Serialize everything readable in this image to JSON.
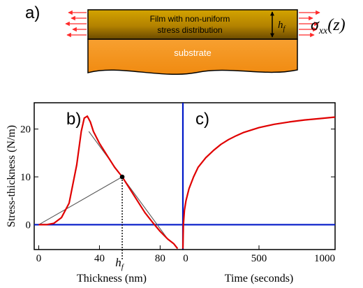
{
  "panel_a": {
    "label": "a)",
    "film_label_line1": "Film with non-uniform",
    "film_label_line2": "stress distribution",
    "substrate_label": "substrate",
    "thickness_label": "h",
    "thickness_subscript": "f",
    "stress_symbol": "σ",
    "stress_subscript": "xx",
    "stress_argument": "(z)",
    "colors": {
      "film_top": "#d4a400",
      "film_bottom": "#6b4a00",
      "substrate": "#f5931e",
      "arrows": "#ff2a2a"
    }
  },
  "chart_data": [
    {
      "panel_label": "b)",
      "type": "line",
      "xlabel": "Thickness (nm)",
      "ylabel": "Stress-thickness (N/m)",
      "xlim": [
        -3,
        95
      ],
      "ylim": [
        -5.2,
        25.5
      ],
      "x_ticks": [
        0,
        40,
        80
      ],
      "y_ticks": [
        0,
        10,
        20
      ],
      "series": [
        {
          "color": "#e00000",
          "x": [
            0,
            5,
            10,
            15,
            20,
            25,
            28,
            30,
            32,
            34,
            36,
            40,
            45,
            50,
            55,
            60,
            65,
            70,
            75,
            80,
            85,
            89,
            91.5
          ],
          "y": [
            0,
            0,
            0.3,
            1.5,
            4.5,
            12.5,
            19.5,
            22.3,
            22.7,
            21.5,
            19.5,
            17.0,
            14.5,
            12.0,
            10.0,
            7.5,
            5.0,
            2.5,
            0.5,
            -1.4,
            -3.0,
            -4.0,
            -5.0
          ]
        }
      ],
      "annotations": {
        "marker_point": {
          "x": 55,
          "y": 10.0
        },
        "tangent_line": {
          "from": [
            33,
            19.5
          ],
          "to": [
            85,
            -3.0
          ]
        },
        "secant_line": {
          "from": [
            0,
            0
          ],
          "to": [
            55,
            10.0
          ]
        },
        "drop_line_label": "h",
        "drop_line_label_subscript": "f"
      },
      "zero_line_color": "#0018c8"
    },
    {
      "panel_label": "c)",
      "type": "line",
      "xlabel": "Time (seconds)",
      "xlim": [
        0,
        1000
      ],
      "ylim": [
        -5.2,
        25.5
      ],
      "x_ticks": [
        0,
        500,
        1000
      ],
      "series": [
        {
          "color": "#e00000",
          "x": [
            0,
            3,
            10,
            20,
            40,
            70,
            100,
            150,
            200,
            250,
            300,
            350,
            400,
            500,
            600,
            700,
            800,
            900,
            1000
          ],
          "y": [
            -5.0,
            0.0,
            3.0,
            5.0,
            7.5,
            10.0,
            12.0,
            14.0,
            15.5,
            16.8,
            17.8,
            18.6,
            19.3,
            20.3,
            21.0,
            21.5,
            21.9,
            22.2,
            22.5
          ]
        }
      ],
      "zero_line_color": "#0018c8"
    }
  ]
}
